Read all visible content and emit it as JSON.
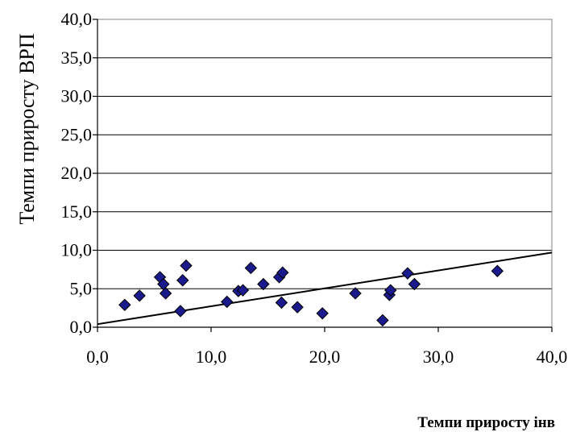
{
  "chart_data": {
    "type": "scatter",
    "title": "",
    "xlabel": "Темпи приросту інв",
    "ylabel": "Темпи приросту ВРП",
    "xlim": [
      0,
      40
    ],
    "ylim": [
      0,
      40
    ],
    "x_ticks": [
      "0,0",
      "10,0",
      "20,0",
      "30,0",
      "40,0"
    ],
    "y_ticks": [
      "0,0",
      "5,0",
      "10,0",
      "15,0",
      "20,0",
      "25,0",
      "30,0",
      "35,0",
      "40,0"
    ],
    "grid": "horizontal",
    "marker": "diamond",
    "marker_color": "#1a1a8c",
    "trendline": {
      "x": [
        0,
        40
      ],
      "y": [
        0.4,
        9.7
      ]
    },
    "points": [
      {
        "x": 2.4,
        "y": 2.9
      },
      {
        "x": 3.7,
        "y": 4.1
      },
      {
        "x": 5.5,
        "y": 6.5
      },
      {
        "x": 5.8,
        "y": 5.6
      },
      {
        "x": 6.0,
        "y": 4.4
      },
      {
        "x": 7.3,
        "y": 2.1
      },
      {
        "x": 7.5,
        "y": 6.1
      },
      {
        "x": 7.8,
        "y": 8.0
      },
      {
        "x": 11.4,
        "y": 3.3
      },
      {
        "x": 12.4,
        "y": 4.7
      },
      {
        "x": 12.8,
        "y": 4.8
      },
      {
        "x": 13.5,
        "y": 7.7
      },
      {
        "x": 14.6,
        "y": 5.6
      },
      {
        "x": 16.0,
        "y": 6.5
      },
      {
        "x": 16.3,
        "y": 7.1
      },
      {
        "x": 16.2,
        "y": 3.2
      },
      {
        "x": 17.6,
        "y": 2.6
      },
      {
        "x": 19.8,
        "y": 1.8
      },
      {
        "x": 22.7,
        "y": 4.4
      },
      {
        "x": 25.1,
        "y": 0.9
      },
      {
        "x": 25.7,
        "y": 4.2
      },
      {
        "x": 25.8,
        "y": 4.8
      },
      {
        "x": 27.3,
        "y": 7.0
      },
      {
        "x": 27.9,
        "y": 5.6
      },
      {
        "x": 35.2,
        "y": 7.3
      }
    ]
  }
}
